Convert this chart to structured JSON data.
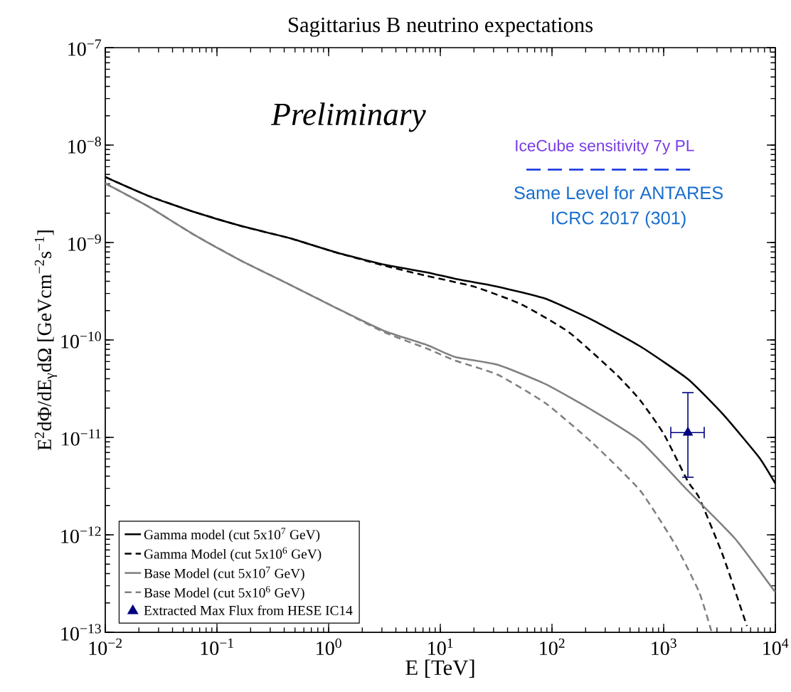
{
  "chart_data": {
    "type": "line",
    "title": "Sagittarius B neutrino expectations",
    "xlabel": "E [TeV]",
    "ylabel": "E$^{2}$dΦ/dE$_{γ}$dΩ [GeVcm$^{−2}$s$^{−1}$]",
    "log": "xy",
    "xlim": [
      0.01,
      10000
    ],
    "ylim": [
      1e-13,
      1e-07
    ],
    "xticks": [
      {
        "value": 0.01,
        "label": "10$^{−2}$"
      },
      {
        "value": 0.1,
        "label": "10$^{−1}$"
      },
      {
        "value": 1,
        "label": "10$^{0}$"
      },
      {
        "value": 10,
        "label": "10$^{1}$"
      },
      {
        "value": 100,
        "label": "10$^{2}$"
      },
      {
        "value": 1000,
        "label": "10$^{3}$"
      },
      {
        "value": 10000,
        "label": "10$^{4}$"
      }
    ],
    "yticks": [
      {
        "value": 1e-13,
        "label": "10$^{−13}$"
      },
      {
        "value": 1e-12,
        "label": "10$^{−12}$"
      },
      {
        "value": 1e-11,
        "label": "10$^{−11}$"
      },
      {
        "value": 1e-10,
        "label": "10$^{−10}$"
      },
      {
        "value": 1e-09,
        "label": "10$^{−9}$"
      },
      {
        "value": 1e-08,
        "label": "10$^{−8}$"
      },
      {
        "value": 1e-07,
        "label": "10$^{−7}$"
      }
    ],
    "legend": "bottom left",
    "series": [
      {
        "name": "Gamma model (cut 5x10$^{7}$ GeV)",
        "type": "line",
        "color": "#000000",
        "line_style": "solid",
        "x": [
          0.01,
          0.024,
          0.0625,
          0.167,
          0.447,
          1.17,
          3.14,
          7.57,
          13.6,
          32.8,
          87.7,
          231,
          617,
          1648,
          3428,
          7145,
          10000
        ],
        "values": [
          4.7e-09,
          3.03e-09,
          2.06e-09,
          1.47e-09,
          1.11e-09,
          7.9e-10,
          5.94e-10,
          4.94e-10,
          4.25e-10,
          3.52e-10,
          2.65e-10,
          1.6e-10,
          8.6e-11,
          3.97e-11,
          1.71e-11,
          6.25e-12,
          3.36e-12
        ]
      },
      {
        "name": "Gamma Model (cut 5x10$^{6}$ GeV)",
        "type": "line",
        "color": "#000000",
        "line_style": "dashed",
        "x": [
          0.01,
          0.024,
          0.0625,
          0.167,
          0.447,
          1.17,
          3.14,
          7.57,
          20.2,
          53.2,
          142,
          380,
          617,
          1000,
          1648,
          2082,
          3428,
          5563
        ],
        "values": [
          4.7e-09,
          3.03e-09,
          2.06e-09,
          1.47e-09,
          1.11e-09,
          7.9e-10,
          5.8e-10,
          4.54e-10,
          3.52e-10,
          2.32e-10,
          1.2e-10,
          4.39e-11,
          2.4e-11,
          1.09e-11,
          3.53e-12,
          2.4e-12,
          5.94e-13,
          1.16e-13
        ]
      },
      {
        "name": "Base Model (cut 5x10$^{7}$ GeV)",
        "type": "line",
        "color": "#808080",
        "line_style": "solid",
        "x": [
          0.01,
          0.024,
          0.0625,
          0.167,
          0.447,
          1.17,
          3.14,
          7.57,
          13.6,
          32.8,
          87.7,
          231,
          617,
          1648,
          4337,
          10000
        ],
        "values": [
          4.04e-09,
          2.36e-09,
          1.2e-09,
          6.46e-10,
          3.71e-10,
          2.13e-10,
          1.24e-10,
          8.89e-11,
          6.68e-11,
          5.56e-11,
          3.52e-11,
          1.89e-11,
          9.2e-12,
          2.84e-12,
          9.2e-13,
          2.57e-13
        ]
      },
      {
        "name": "Base Model (cut 5x10$^{6}$ GeV)",
        "type": "line",
        "color": "#808080",
        "line_style": "dashed",
        "x": [
          0.01,
          0.024,
          0.0625,
          0.167,
          0.447,
          1.17,
          3.14,
          7.57,
          13.6,
          32.8,
          87.7,
          231,
          617,
          1282,
          2082,
          2673
        ],
        "values": [
          4.04e-09,
          2.36e-09,
          1.2e-09,
          6.46e-10,
          3.71e-10,
          2.13e-10,
          1.2e-10,
          8.17e-11,
          6.14e-11,
          4.39e-11,
          2.24e-11,
          8.75e-12,
          2.84e-12,
          7.78e-13,
          2.57e-13,
          1.03e-13
        ]
      },
      {
        "name": "Extracted Max Flux from HESE IC14",
        "type": "scatter",
        "color": "#000080",
        "marker": "triangle",
        "x": [
          1648
        ],
        "values": [
          1.12e-11
        ],
        "errors": [
          [
            3.9e-12,
            2.88e-11
          ]
        ],
        "xerrors": [
          [
            1158,
            2307
          ]
        ]
      },
      {
        "type": "line",
        "color": "#1030e0",
        "line_style": "dashed",
        "x": [
          59,
          1723
        ],
        "values": [
          5.6e-09,
          5.6e-09
        ]
      }
    ],
    "annotations": [
      "Preliminary",
      "IceCube sensitivity 7y PL",
      "Same Level for ANTARES",
      "ICRC 2017 (301)"
    ]
  }
}
